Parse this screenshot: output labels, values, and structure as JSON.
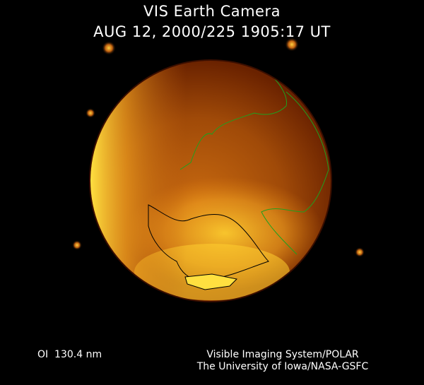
{
  "header": {
    "instrument": "VIS Earth Camera",
    "timestamp": "AUG 12, 2000/225 1905:17 UT"
  },
  "footer": {
    "band": "OI  130.4 nm",
    "credit_line1": "Visible Imaging System/POLAR",
    "credit_line2": "The University of Iowa/NASA-GSFC"
  },
  "colors": {
    "background": "#000000",
    "glow_bright": "#ffe040",
    "glow_mid": "#d87a10",
    "glow_dark": "#5a1a00",
    "coastline_day": "#1fa01f",
    "coastline_night": "#000000"
  }
}
